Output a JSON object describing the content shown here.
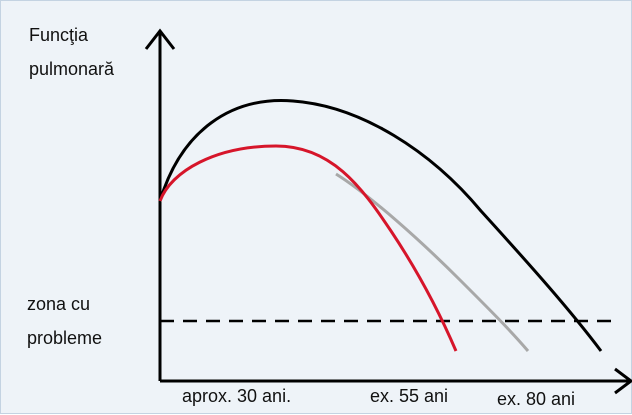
{
  "y_axis_label_line1": "Funcţia",
  "y_axis_label_line2": "pulmonară",
  "problem_zone_line1": "zona cu",
  "problem_zone_line2": "probleme",
  "x_ticks": [
    "aprox. 30 ani.",
    "ex. 55 ani",
    "ex. 80 ani"
  ],
  "colors": {
    "healthy": "#000000",
    "early_decline": "#d6152a",
    "moderate_decline": "#a8a8a8",
    "threshold": "#000000",
    "background": "#eef3f8"
  }
}
